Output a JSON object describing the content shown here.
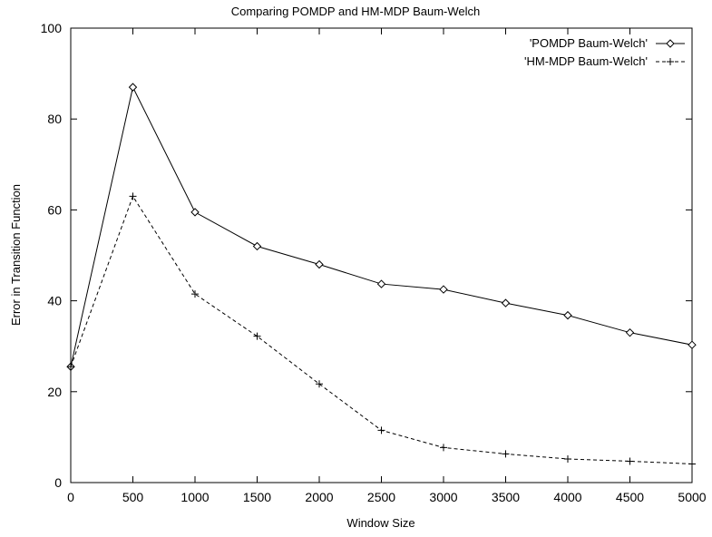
{
  "chart_data": {
    "type": "line",
    "title": "Comparing POMDP and HM-MDP Baum-Welch",
    "xlabel": "Window Size",
    "ylabel": "Error in Transition Function",
    "xlim": [
      0,
      5000
    ],
    "ylim": [
      0,
      100
    ],
    "xticks": [
      0,
      500,
      1000,
      1500,
      2000,
      2500,
      3000,
      3500,
      4000,
      4500,
      5000
    ],
    "yticks": [
      0,
      20,
      40,
      60,
      80,
      100
    ],
    "grid": false,
    "legend_position": "top-right",
    "x": [
      0,
      500,
      1000,
      1500,
      2000,
      2500,
      3000,
      3500,
      4000,
      4500,
      5000
    ],
    "series": [
      {
        "name": "'POMDP Baum-Welch'",
        "marker": "diamond",
        "line_style": "solid",
        "color": "#000000",
        "values": [
          25.5,
          87,
          59.5,
          52,
          48,
          43.7,
          42.5,
          39.5,
          36.8,
          33,
          30.3
        ]
      },
      {
        "name": "'HM-MDP Baum-Welch'",
        "marker": "plus",
        "line_style": "dashed",
        "color": "#000000",
        "values": [
          25.5,
          63,
          41.5,
          32.2,
          21.7,
          11.5,
          7.7,
          6.3,
          5.2,
          4.7,
          4.1
        ]
      }
    ]
  }
}
